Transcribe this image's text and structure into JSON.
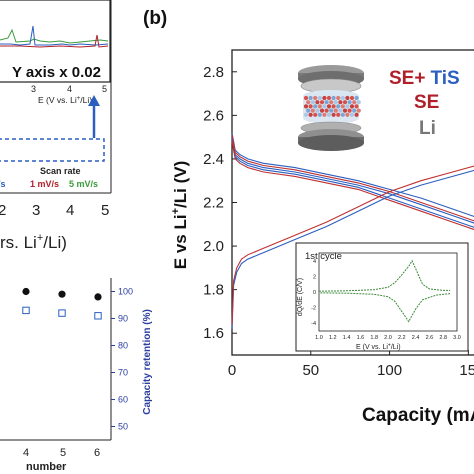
{
  "panel_b": {
    "label": "(b)",
    "ylabel_main": "E vs Li",
    "ylabel_sup": "+",
    "ylabel_tail": "/Li (V)",
    "xlabel": "Capacity (mAh",
    "legend": {
      "se_plus": "SE+",
      "tis": "TiS",
      "se": "SE",
      "li": "Li"
    },
    "legend_colors": {
      "se_plus": "#b0202a",
      "tis": "#2a5fc0",
      "se": "#b0202a",
      "li": "#777777"
    },
    "inset": {
      "title": "1st cycle",
      "ylabel": "dQ/dE (C/V)",
      "xlabel": "E (V vs. Li",
      "xlabel_sup": "+",
      "xlabel_tail": "/Li)",
      "xticks": [
        "1.0",
        "1.2",
        "1.4",
        "1.6",
        "1.8",
        "2.0",
        "2.2",
        "2.4",
        "2.6",
        "2.8",
        "3.0"
      ],
      "yticks": [
        "4",
        "2",
        "0",
        "-2",
        "-4"
      ],
      "color": "#3a8a3a"
    }
  },
  "panel_a_fragment": {
    "note_text": "Y axis x 0.02",
    "x_axis_text": "E (V vs. Li",
    "x_axis_sup": "+",
    "x_axis_tail": "/Li)",
    "x_ticks_inner": [
      "3",
      "4",
      "5"
    ],
    "scan_rate_label": "Scan rate",
    "rates": [
      {
        "text": "/s",
        "color": "#2a5fc0"
      },
      {
        "text": "1 mV/s",
        "color": "#b0202a"
      },
      {
        "text": "5 mV/s",
        "color": "#3a9a3a"
      }
    ],
    "x_ticks_outer": [
      "2",
      "3",
      "4",
      "5"
    ],
    "axis_fragment": "rs. Li",
    "axis_fragment_sup": "+",
    "axis_fragment_tail": "/Li)"
  },
  "panel_c_fragment": {
    "ylabel_right": "Capacity retention (%)",
    "yticks_right": [
      "100",
      "90",
      "80",
      "70",
      "60",
      "50"
    ],
    "xticks": [
      "4",
      "5",
      "6"
    ],
    "xlabel": "number"
  },
  "chart_data": [
    {
      "type": "line",
      "panel": "b",
      "ylim": [
        1.5,
        2.9
      ],
      "xlim": [
        0,
        165
      ],
      "yticks": [
        "1.6",
        "1.8",
        "2.0",
        "2.2",
        "2.4",
        "2.6",
        "2.8"
      ],
      "xticks": [
        "0",
        "50",
        "100",
        "15"
      ],
      "series": [
        {
          "color": "#2a5fc0",
          "kind": "discharge",
          "x": [
            0,
            2,
            5,
            10,
            20,
            40,
            60,
            80,
            100,
            120,
            140,
            160
          ],
          "y": [
            2.52,
            2.44,
            2.42,
            2.4,
            2.38,
            2.36,
            2.33,
            2.3,
            2.26,
            2.22,
            2.17,
            2.12
          ]
        },
        {
          "color": "#2a5fc0",
          "kind": "discharge",
          "x": [
            0,
            2,
            5,
            10,
            20,
            40,
            60,
            80,
            100,
            120,
            140,
            160
          ],
          "y": [
            2.5,
            2.42,
            2.4,
            2.38,
            2.36,
            2.34,
            2.31,
            2.28,
            2.24,
            2.19,
            2.14,
            2.09
          ]
        },
        {
          "color": "#2a5fc0",
          "kind": "discharge",
          "x": [
            0,
            2,
            5,
            10,
            20,
            40,
            60,
            80,
            100,
            120,
            140,
            160
          ],
          "y": [
            2.49,
            2.41,
            2.39,
            2.37,
            2.35,
            2.33,
            2.3,
            2.27,
            2.22,
            2.17,
            2.12,
            2.07
          ]
        },
        {
          "color": "#c03030",
          "kind": "discharge",
          "x": [
            0,
            2,
            5,
            10,
            20,
            40,
            60,
            80,
            100,
            120,
            140,
            160
          ],
          "y": [
            2.51,
            2.43,
            2.41,
            2.39,
            2.37,
            2.35,
            2.32,
            2.29,
            2.25,
            2.2,
            2.15,
            2.1
          ]
        },
        {
          "color": "#c03030",
          "kind": "discharge",
          "x": [
            0,
            2,
            5,
            10,
            20,
            40,
            60,
            80,
            100,
            120,
            140,
            160
          ],
          "y": [
            2.48,
            2.4,
            2.38,
            2.36,
            2.34,
            2.32,
            2.29,
            2.26,
            2.21,
            2.16,
            2.11,
            2.06
          ]
        },
        {
          "color": "#2a5fc0",
          "kind": "charge",
          "x": [
            0,
            1,
            3,
            6,
            10,
            20,
            40,
            60,
            80,
            100,
            120,
            140,
            160
          ],
          "y": [
            1.62,
            1.82,
            1.88,
            1.92,
            1.94,
            1.97,
            2.03,
            2.09,
            2.16,
            2.23,
            2.28,
            2.32,
            2.36
          ]
        },
        {
          "color": "#c03030",
          "kind": "charge",
          "x": [
            0,
            1,
            3,
            6,
            10,
            20,
            40,
            60,
            80,
            100,
            120,
            140,
            160
          ],
          "y": [
            1.64,
            1.84,
            1.9,
            1.94,
            1.96,
            1.99,
            2.05,
            2.11,
            2.18,
            2.25,
            2.3,
            2.34,
            2.38
          ]
        }
      ]
    },
    {
      "type": "line",
      "panel": "b-inset",
      "xlim": [
        1.0,
        3.0
      ],
      "ylim": [
        -5,
        5
      ],
      "series": [
        {
          "color": "#3a8a3a",
          "name": "",
          "x": [
            1.0,
            1.4,
            1.8,
            2.0,
            2.1,
            2.2,
            2.3,
            2.35,
            2.4,
            2.5,
            2.6,
            2.8,
            2.9
          ],
          "y": [
            0.1,
            0.15,
            0.3,
            0.6,
            1.2,
            2.2,
            3.3,
            4.0,
            3.0,
            1.0,
            0.4,
            0.2,
            0.2
          ]
        },
        {
          "color": "#3a8a3a",
          "name": "",
          "x": [
            2.9,
            2.7,
            2.5,
            2.4,
            2.35,
            2.3,
            2.2,
            2.1,
            2.0,
            1.8,
            1.4,
            1.0
          ],
          "y": [
            -0.2,
            -0.4,
            -1.0,
            -2.2,
            -3.0,
            -3.8,
            -2.5,
            -1.2,
            -0.6,
            -0.3,
            -0.15,
            -0.1
          ]
        }
      ]
    },
    {
      "type": "scatter",
      "panel": "c-fragment",
      "x": [
        4,
        5,
        6
      ],
      "series": [
        {
          "marker": "filled-circle",
          "color": "#111111",
          "values": [
            100,
            99,
            98
          ]
        },
        {
          "marker": "open-square",
          "color": "#2a5fc0",
          "values": [
            93,
            92,
            91
          ]
        }
      ]
    }
  ]
}
